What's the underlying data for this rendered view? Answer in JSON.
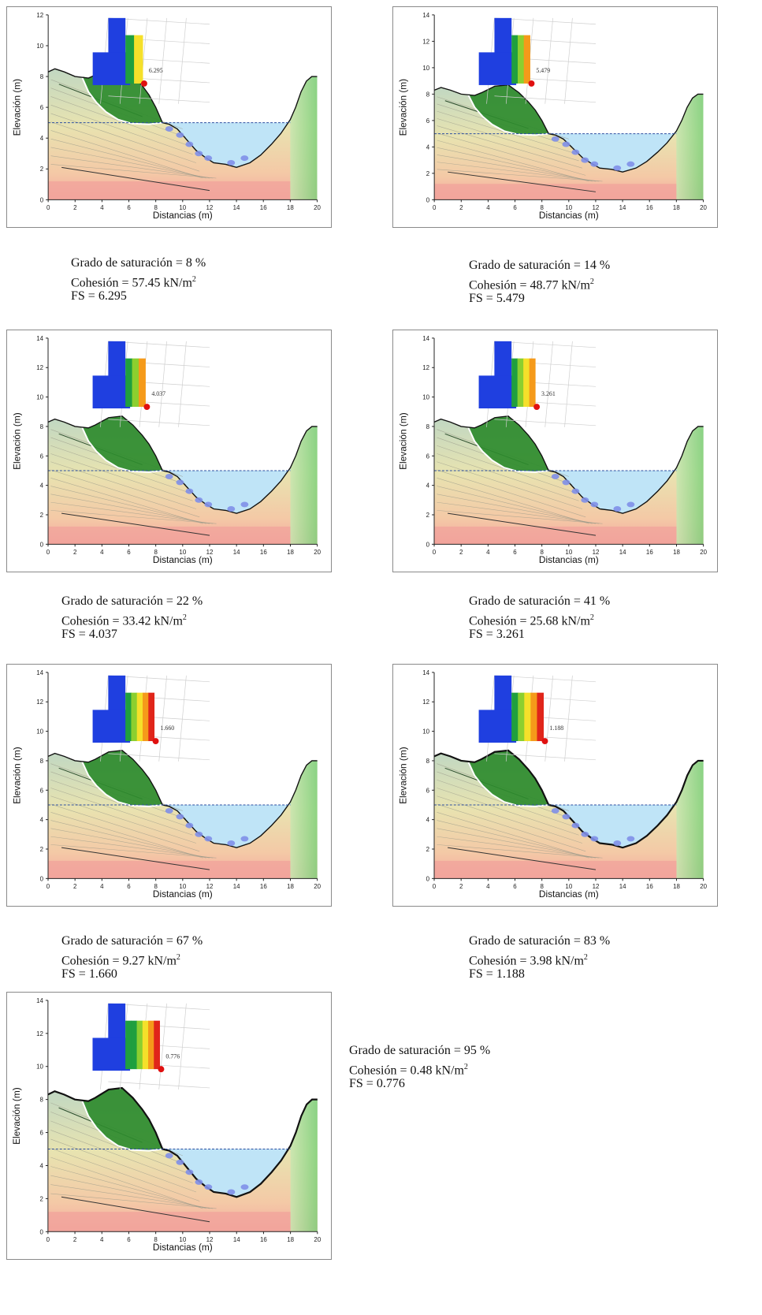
{
  "axes": {
    "xlabel": "Distancias (m)",
    "ylabel": "Elevación (m)",
    "x_ticks": [
      "0",
      "2",
      "4",
      "6",
      "8",
      "10",
      "12",
      "14",
      "16",
      "18",
      "20"
    ],
    "y_ticks": [
      "0",
      "2",
      "4",
      "6",
      "8",
      "10",
      "12",
      "14"
    ]
  },
  "cases": [
    {
      "saturation_text": "Grado de saturación = 8 %",
      "cohesion_value": "Cohesión = 57.45 kN/m",
      "fs_text": "FS = 6.295",
      "inset_label": "6.295",
      "saturation_pct": 8
    },
    {
      "saturation_text": "Grado de saturación = 14 %",
      "cohesion_value": "Cohesión = 48.77 kN/m",
      "fs_text": "FS = 5.479",
      "inset_label": "5.479",
      "saturation_pct": 14
    },
    {
      "saturation_text": "Grado de saturación = 22 %",
      "cohesion_value": "Cohesión = 33.42 kN/m",
      "fs_text": "FS = 4.037",
      "inset_label": "4.037",
      "saturation_pct": 22
    },
    {
      "saturation_text": "Grado de saturación = 41 %",
      "cohesion_value": "Cohesión = 25.68 kN/m",
      "fs_text": "FS = 3.261",
      "inset_label": "3.261",
      "saturation_pct": 41
    },
    {
      "saturation_text": "Grado de saturación = 67 %",
      "cohesion_value": "Cohesión = 9.27 kN/m",
      "fs_text": "FS = 1.660",
      "inset_label": "1.660",
      "saturation_pct": 67
    },
    {
      "saturation_text": "Grado de saturación = 83 %",
      "cohesion_value": "Cohesión = 3.98 kN/m",
      "fs_text": "FS = 1.188",
      "inset_label": "1.188",
      "saturation_pct": 83
    },
    {
      "saturation_text": "Grado de saturación = 95 %",
      "cohesion_value": "Cohesión = 0.48 kN/m",
      "fs_text": "FS = 0.776",
      "inset_label": "0.776",
      "saturation_pct": 95
    }
  ],
  "units": {
    "superscript": "2"
  },
  "colors": {
    "water": "#bfe4f7",
    "slide_mass": "#2e8b2e",
    "frame": "#8a8a8a"
  }
}
